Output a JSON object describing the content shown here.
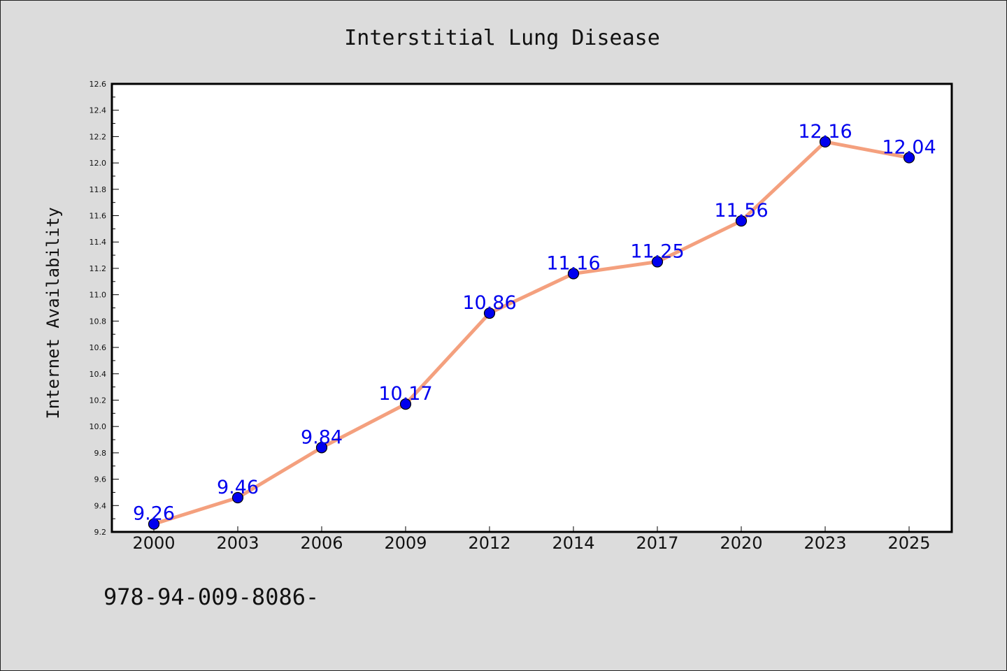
{
  "chart_data": {
    "type": "line",
    "title": "Interstitial Lung Disease",
    "ylabel": "Internet Availability",
    "xlabel": "",
    "categories": [
      "2000",
      "2003",
      "2006",
      "2009",
      "2012",
      "2014",
      "2017",
      "2020",
      "2023",
      "2025"
    ],
    "series": [
      {
        "values": [
          9.26,
          9.46,
          9.84,
          10.17,
          10.86,
          11.16,
          11.25,
          11.56,
          12.16,
          12.04
        ]
      }
    ],
    "ylim": [
      9.2,
      12.6
    ],
    "yticks": [
      "9.2",
      "9.4",
      "9.6",
      "9.8",
      "10.0",
      "10.2",
      "10.4",
      "10.6",
      "10.8",
      "11.0",
      "11.2",
      "11.4",
      "11.6",
      "11.8",
      "12.0",
      "12.2",
      "12.4",
      "12.6"
    ],
    "data_labels": [
      "9.26",
      "9.46",
      "9.84",
      "10.17",
      "10.86",
      "11.16",
      "11.25",
      "11.56",
      "12.16",
      "12.04"
    ],
    "grid": false,
    "legend": "none",
    "colors": {
      "line": "#f4a07e",
      "marker": "#0000ee",
      "data_label": "#0000ee",
      "plot_background": "#ffffff",
      "page_background": "#dcdcdc"
    }
  },
  "footer": {
    "text": "978-94-009-8086-"
  }
}
